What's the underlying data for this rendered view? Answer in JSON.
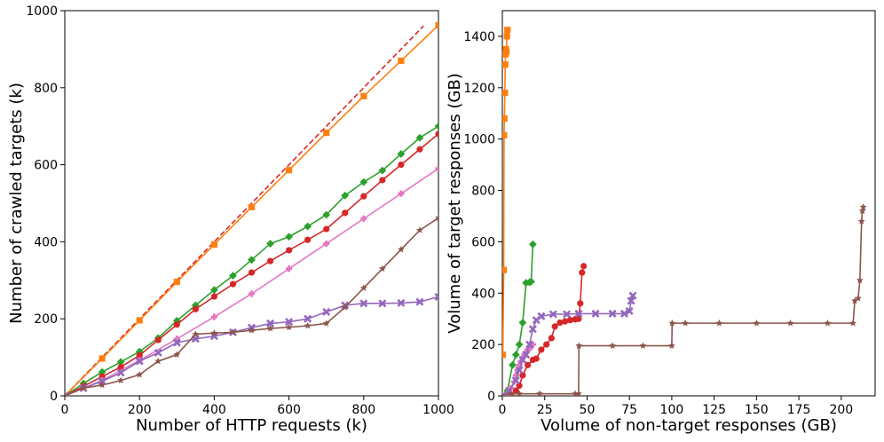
{
  "colors": {
    "orange": "#ff7f0e",
    "green": "#2ca02c",
    "red": "#d62728",
    "purple": "#9467bd",
    "brown": "#8c564b",
    "pink": "#e377c2",
    "ref": "#d62728"
  },
  "chart_data": [
    {
      "type": "line",
      "xlabel": "Number of HTTP requests (k)",
      "ylabel": "Number of crawled targets (k)",
      "xlim": [
        0,
        1000
      ],
      "ylim": [
        0,
        1000
      ],
      "xticks": [
        0,
        200,
        400,
        600,
        800,
        1000
      ],
      "yticks": [
        0,
        200,
        400,
        600,
        800,
        1000
      ],
      "reference_line": {
        "x": [
          0,
          960
        ],
        "y": [
          0,
          960
        ],
        "color_key": "ref",
        "style": "dashed"
      },
      "series": [
        {
          "name": "orange",
          "color_key": "orange",
          "marker": "square",
          "x": [
            0,
            100,
            200,
            300,
            400,
            500,
            600,
            700,
            800,
            900,
            1000
          ],
          "y": [
            0,
            97,
            196,
            296,
            393,
            490,
            586,
            683,
            778,
            870,
            962
          ]
        },
        {
          "name": "green",
          "color_key": "green",
          "marker": "diamond",
          "x": [
            0,
            50,
            100,
            150,
            200,
            250,
            300,
            350,
            400,
            450,
            500,
            550,
            600,
            650,
            700,
            750,
            800,
            850,
            900,
            950,
            1000
          ],
          "y": [
            0,
            32,
            62,
            88,
            115,
            150,
            195,
            235,
            275,
            312,
            353,
            395,
            413,
            440,
            470,
            520,
            555,
            585,
            628,
            670,
            700
          ]
        },
        {
          "name": "red",
          "color_key": "red",
          "marker": "circle",
          "x": [
            0,
            50,
            100,
            150,
            200,
            250,
            300,
            350,
            400,
            450,
            500,
            550,
            600,
            650,
            700,
            750,
            800,
            850,
            900,
            950,
            1000
          ],
          "y": [
            0,
            25,
            50,
            75,
            105,
            145,
            185,
            225,
            258,
            290,
            320,
            350,
            378,
            405,
            433,
            475,
            518,
            560,
            600,
            640,
            680
          ]
        },
        {
          "name": "pink",
          "color_key": "pink",
          "marker": "plus",
          "x": [
            0,
            100,
            200,
            300,
            400,
            500,
            600,
            700,
            800,
            900,
            1000
          ],
          "y": [
            0,
            40,
            92,
            148,
            205,
            265,
            330,
            395,
            460,
            525,
            590
          ]
        },
        {
          "name": "purple",
          "color_key": "purple",
          "marker": "x",
          "x": [
            0,
            50,
            100,
            150,
            200,
            250,
            300,
            350,
            400,
            450,
            500,
            550,
            600,
            650,
            700,
            750,
            800,
            850,
            900,
            950,
            1000
          ],
          "y": [
            0,
            20,
            38,
            60,
            90,
            112,
            138,
            148,
            155,
            165,
            177,
            188,
            192,
            200,
            218,
            235,
            240,
            240,
            241,
            244,
            257
          ]
        },
        {
          "name": "brown",
          "color_key": "brown",
          "marker": "star",
          "x": [
            0,
            50,
            100,
            150,
            200,
            250,
            300,
            350,
            400,
            450,
            500,
            550,
            600,
            650,
            700,
            750,
            800,
            850,
            900,
            950,
            1000
          ],
          "y": [
            0,
            20,
            28,
            40,
            55,
            90,
            107,
            160,
            163,
            165,
            170,
            175,
            178,
            182,
            188,
            230,
            280,
            330,
            380,
            430,
            462
          ]
        }
      ]
    },
    {
      "type": "line",
      "xlabel": "Volume of non-target responses (GB)",
      "ylabel": "Volume of target responses (GB)",
      "xlim": [
        0,
        220
      ],
      "ylim": [
        0,
        1500
      ],
      "xticks": [
        0,
        25,
        50,
        75,
        100,
        125,
        150,
        175,
        200
      ],
      "yticks": [
        0,
        200,
        400,
        600,
        800,
        1000,
        1200,
        1400
      ],
      "series": [
        {
          "name": "orange",
          "color_key": "orange",
          "marker": "square",
          "x": [
            0.3,
            0.8,
            1.0,
            1.2,
            1.5,
            1.7,
            1.9,
            2.1,
            2.4,
            2.7,
            3.0
          ],
          "y": [
            160,
            490,
            1015,
            1080,
            1180,
            1290,
            1330,
            1350,
            1340,
            1400,
            1425
          ]
        },
        {
          "name": "green",
          "color_key": "green",
          "marker": "diamond",
          "x": [
            0,
            3,
            6,
            8,
            10,
            12,
            14,
            16,
            17,
            18
          ],
          "y": [
            0,
            20,
            120,
            160,
            200,
            285,
            440,
            442,
            445,
            590
          ]
        },
        {
          "name": "red",
          "color_key": "red",
          "marker": "circle",
          "x": [
            5,
            8,
            10,
            12,
            15,
            18,
            20,
            23,
            26,
            29,
            31,
            34,
            37,
            40,
            43,
            45,
            46,
            47,
            48
          ],
          "y": [
            5,
            20,
            40,
            80,
            120,
            140,
            145,
            180,
            200,
            225,
            270,
            285,
            290,
            295,
            298,
            300,
            360,
            480,
            505
          ]
        },
        {
          "name": "pink",
          "color_key": "pink",
          "marker": "plus",
          "x": [
            0,
            3,
            5,
            7,
            8,
            9,
            10,
            11,
            12,
            13,
            14,
            15,
            16,
            17,
            18
          ],
          "y": [
            0,
            10,
            30,
            55,
            80,
            100,
            120,
            135,
            150,
            160,
            170,
            180,
            185,
            190,
            200
          ]
        },
        {
          "name": "purple",
          "color_key": "purple",
          "marker": "x",
          "x": [
            0,
            4,
            8,
            10,
            12,
            14,
            16,
            18,
            20,
            23,
            30,
            38,
            45,
            55,
            65,
            72,
            75,
            76,
            77
          ],
          "y": [
            0,
            20,
            60,
            100,
            140,
            160,
            200,
            260,
            295,
            310,
            318,
            318,
            320,
            320,
            320,
            320,
            330,
            370,
            390
          ]
        },
        {
          "name": "brown",
          "color_key": "brown",
          "marker": "star",
          "x": [
            0,
            5,
            10,
            22,
            43,
            45,
            45.2,
            65,
            83,
            100,
            100.2,
            108,
            128,
            150,
            170,
            192,
            207,
            208,
            210,
            211,
            212,
            212.5,
            213
          ],
          "y": [
            0,
            8,
            8,
            8,
            8,
            8,
            195,
            195,
            195,
            195,
            283,
            283,
            283,
            283,
            283,
            283,
            283,
            370,
            380,
            450,
            680,
            720,
            735
          ]
        }
      ]
    }
  ]
}
